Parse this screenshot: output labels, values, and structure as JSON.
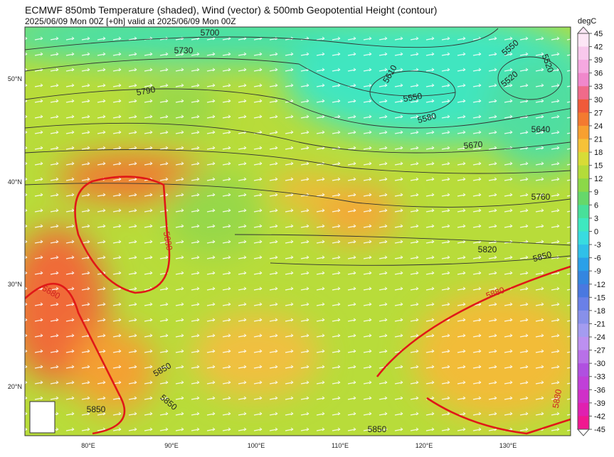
{
  "header": {
    "title": "ECMWF 850mb Temperature (shaded), Wind (vector) & 500mb Geopotential Height (contour)",
    "subtitle": "2025/06/09 Mon 00Z [+0h] valid at 2025/06/09 Mon 00Z"
  },
  "lat_labels": [
    "50°N",
    "40°N",
    "30°N",
    "20°N"
  ],
  "lon_labels": [
    "80°E",
    "90°E",
    "100°E",
    "110°E",
    "120°E",
    "130°E"
  ],
  "colorbar": {
    "unit": "degC",
    "ticks": [
      45,
      42,
      39,
      36,
      33,
      30,
      27,
      24,
      21,
      18,
      15,
      12,
      9,
      6,
      3,
      0,
      -3,
      -6,
      -9,
      -12,
      -15,
      -18,
      -21,
      -24,
      -27,
      -30,
      -33,
      -36,
      -39,
      -42,
      -45
    ],
    "colors": [
      "#fde6f6",
      "#f8c8ec",
      "#f5a8e0",
      "#f088cc",
      "#f06a8a",
      "#f05a3a",
      "#f47a30",
      "#f8a030",
      "#f6c238",
      "#d8dc36",
      "#b4dc3a",
      "#8cd848",
      "#66d86a",
      "#48e09a",
      "#3ee8c0",
      "#38dce0",
      "#30c0e8",
      "#2aa0e8",
      "#3486e0",
      "#4a78e0",
      "#6a80e8",
      "#8890ea",
      "#a49cf0",
      "#bc90f0",
      "#b870e8",
      "#b050e0",
      "#c040d8",
      "#d030c8",
      "#e020b0",
      "#f01890"
    ]
  },
  "contour_labels": [
    {
      "value": 5700,
      "color": "#222"
    },
    {
      "value": 5730,
      "color": "#222"
    },
    {
      "value": 5790,
      "color": "#222"
    },
    {
      "value": 5610,
      "color": "#222"
    },
    {
      "value": 5550,
      "color": "#222"
    },
    {
      "value": 5580,
      "color": "#222"
    },
    {
      "value": 5550,
      "color": "#222"
    },
    {
      "value": 5520,
      "color": "#222"
    },
    {
      "value": 5520,
      "color": "#222"
    },
    {
      "value": 5640,
      "color": "#222"
    },
    {
      "value": 5670,
      "color": "#222"
    },
    {
      "value": 5760,
      "color": "#222"
    },
    {
      "value": 5820,
      "color": "#222"
    },
    {
      "value": 5850,
      "color": "#222"
    },
    {
      "value": 5880,
      "color": "#d02020"
    },
    {
      "value": 5880,
      "color": "#d02020"
    },
    {
      "value": 5880,
      "color": "#d02020"
    },
    {
      "value": 5850,
      "color": "#222"
    },
    {
      "value": 5850,
      "color": "#222"
    },
    {
      "value": 5850,
      "color": "#222"
    },
    {
      "value": 5850,
      "color": "#222"
    },
    {
      "value": 5880,
      "color": "#d02020"
    }
  ]
}
